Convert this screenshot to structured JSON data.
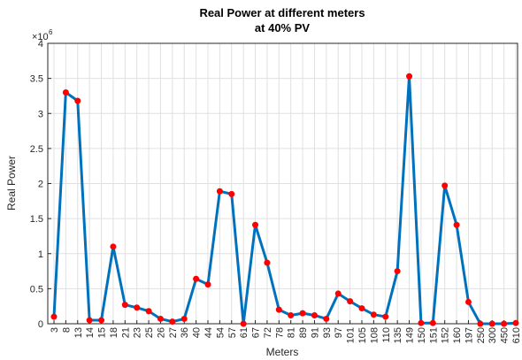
{
  "chart_data": {
    "type": "line",
    "title": "Real Power at different meters",
    "subtitle": "at 40% PV",
    "x_label": "Meters",
    "y_label": "Real Power",
    "y_scale_base": "×10",
    "y_scale_exponent": "6",
    "categories": [
      "3",
      "8",
      "13",
      "14",
      "15",
      "18",
      "21",
      "23",
      "25",
      "26",
      "27",
      "36",
      "40",
      "44",
      "54",
      "57",
      "61",
      "67",
      "72",
      "78",
      "81",
      "89",
      "91",
      "93",
      "97",
      "101",
      "105",
      "108",
      "110",
      "135",
      "149",
      "150",
      "151",
      "152",
      "160",
      "197",
      "250",
      "300",
      "450",
      "610"
    ],
    "values": [
      0.1,
      3.3,
      3.18,
      0.05,
      0.05,
      1.1,
      0.27,
      0.23,
      0.18,
      0.07,
      0.03,
      0.07,
      0.64,
      0.56,
      1.89,
      1.85,
      0.0,
      1.41,
      0.87,
      0.2,
      0.12,
      0.15,
      0.12,
      0.07,
      0.43,
      0.32,
      0.22,
      0.13,
      0.1,
      0.75,
      3.53,
      0.01,
      0.01,
      1.97,
      1.41,
      0.31,
      0.0,
      0.0,
      0.0,
      0.01
    ],
    "color": "#0072bd",
    "marker_color": "#ff0000",
    "ylim": [
      0,
      4
    ],
    "yticks": [
      0,
      0.5,
      1,
      1.5,
      2,
      2.5,
      3,
      3.5,
      4
    ],
    "grid": true
  }
}
